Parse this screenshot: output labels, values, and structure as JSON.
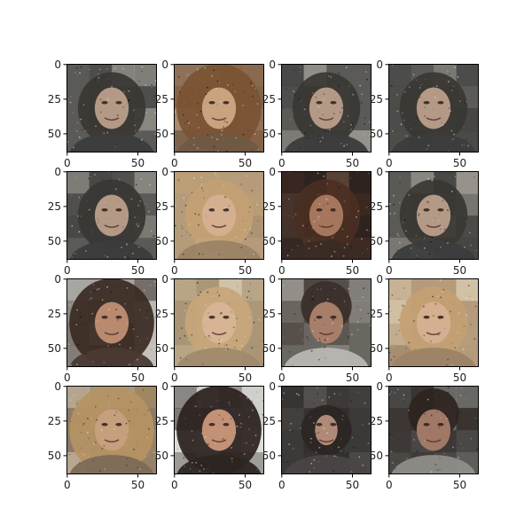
{
  "chart_data": {
    "type": "image-grid",
    "rows": 4,
    "cols": 4,
    "image_size": [
      64,
      64
    ],
    "x_ticks": [
      0,
      50
    ],
    "y_ticks": [
      0,
      25,
      50
    ],
    "x_tick_labels": [
      "0",
      "50"
    ],
    "y_tick_labels": [
      "0",
      "25",
      "50"
    ],
    "panels": [
      {
        "id": "p-0-0",
        "style": "noisy-gray",
        "bg": "#5b5a57",
        "hair": "#3a3733",
        "face": "#b49a86",
        "shirt": "#3b3c3c",
        "accent": "#cfc8be"
      },
      {
        "id": "p-0-1",
        "style": "warm-long",
        "bg": "#8f7259",
        "hair": "#7a5232",
        "face": "#c9a27e",
        "shirt": "#6f5a44",
        "accent": "#e0c6a6"
      },
      {
        "id": "p-0-2",
        "style": "noisy-gray",
        "bg": "#5b5a57",
        "hair": "#3a3733",
        "face": "#b49a86",
        "shirt": "#3b3c3c",
        "accent": "#cfc8be"
      },
      {
        "id": "p-0-3",
        "style": "noisy-gray",
        "bg": "#5b5a57",
        "hair": "#3a3733",
        "face": "#b49a86",
        "shirt": "#3b3c3c",
        "accent": "#cfc8be"
      },
      {
        "id": "p-1-0",
        "style": "noisy-gray",
        "bg": "#5b5a57",
        "hair": "#3a3733",
        "face": "#b49a86",
        "shirt": "#3b3c3c",
        "accent": "#cfc8be"
      },
      {
        "id": "p-1-1",
        "style": "blonde",
        "bg": "#b59c7b",
        "hair": "#c3a173",
        "face": "#d4b090",
        "shirt": "#9c8366",
        "accent": "#e8dcc6"
      },
      {
        "id": "p-1-2",
        "style": "dark-brown",
        "bg": "#2f2420",
        "hair": "#4a2f22",
        "face": "#a6765c",
        "shirt": "#3a2b24",
        "accent": "#7a5a47"
      },
      {
        "id": "p-1-3",
        "style": "noisy-gray",
        "bg": "#5b5a57",
        "hair": "#3a3733",
        "face": "#b49a86",
        "shirt": "#3b3c3c",
        "accent": "#cfc8be"
      },
      {
        "id": "p-2-0",
        "style": "curly-dark",
        "bg": "#a7a6a2",
        "hair": "#3a2a22",
        "face": "#b98a6e",
        "shirt": "#4a3a33",
        "accent": "#d9d4cc"
      },
      {
        "id": "p-2-1",
        "style": "blonde",
        "bg": "#b8a587",
        "hair": "#c7a67a",
        "face": "#d6b494",
        "shirt": "#a08a6c",
        "accent": "#ece3d1"
      },
      {
        "id": "p-2-2",
        "style": "man-short",
        "bg": "#6a6661",
        "hair": "#3b302b",
        "face": "#a77e68",
        "shirt": "#b9b7b2",
        "accent": "#dedcd7"
      },
      {
        "id": "p-2-3",
        "style": "blonde",
        "bg": "#b59c7b",
        "hair": "#c3a173",
        "face": "#d4b090",
        "shirt": "#9c8366",
        "accent": "#e8dcc6"
      },
      {
        "id": "p-3-0",
        "style": "blonde-messy",
        "bg": "#8a7a66",
        "hair": "#b59363",
        "face": "#c69f7c",
        "shirt": "#7c6a58",
        "accent": "#d8c7ad"
      },
      {
        "id": "p-3-1",
        "style": "dark-long",
        "bg": "#cfcfcc",
        "hair": "#2a211e",
        "face": "#c39276",
        "shirt": "#2c2522",
        "accent": "#efeeea"
      },
      {
        "id": "p-3-2",
        "style": "small-face",
        "bg": "#3c3a38",
        "hair": "#2b2624",
        "face": "#b08a78",
        "shirt": "#4a4644",
        "accent": "#6c6865"
      },
      {
        "id": "p-3-3",
        "style": "man-dark",
        "bg": "#4a4846",
        "hair": "#2e2420",
        "face": "#9f7866",
        "shirt": "#8f8d89",
        "accent": "#b9b6b0"
      }
    ]
  }
}
